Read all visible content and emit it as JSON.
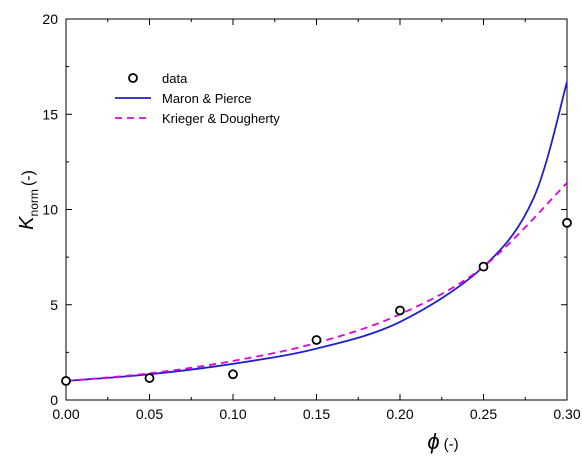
{
  "chart_data": {
    "type": "scatter",
    "title": "",
    "xlabel": {
      "symbol": "ϕ",
      "unit": "(-)"
    },
    "ylabel": {
      "symbol": "K",
      "subscript": "norm",
      "unit": "(-)"
    },
    "xlim": [
      0.0,
      0.3
    ],
    "ylim": [
      0,
      20
    ],
    "xticks": [
      "0.00",
      "0.05",
      "0.10",
      "0.15",
      "0.20",
      "0.25",
      "0.30"
    ],
    "yticks": [
      "0",
      "5",
      "10",
      "15",
      "20"
    ],
    "grid": false,
    "legend_position": "top-left",
    "series": [
      {
        "name": "data",
        "kind": "points",
        "marker": "open-circle",
        "color": "#000000",
        "x": [
          0.0,
          0.05,
          0.1,
          0.15,
          0.2,
          0.25,
          0.3
        ],
        "y": [
          1.0,
          1.15,
          1.35,
          3.15,
          4.7,
          7.0,
          9.3
        ]
      },
      {
        "name": "Maron & Pierce",
        "kind": "line",
        "style": "solid",
        "color": "#1f1fcc",
        "x": [
          0.0,
          0.05,
          0.1,
          0.15,
          0.2,
          0.25,
          0.28,
          0.3
        ],
        "y": [
          1.0,
          1.35,
          1.9,
          2.7,
          4.1,
          7.0,
          10.6,
          16.7
        ]
      },
      {
        "name": "Krieger & Dougherty",
        "kind": "line",
        "style": "dashed",
        "color": "#e000e0",
        "x": [
          0.0,
          0.05,
          0.1,
          0.15,
          0.2,
          0.25,
          0.3
        ],
        "y": [
          1.0,
          1.4,
          2.05,
          3.0,
          4.5,
          7.0,
          11.4
        ]
      }
    ]
  }
}
